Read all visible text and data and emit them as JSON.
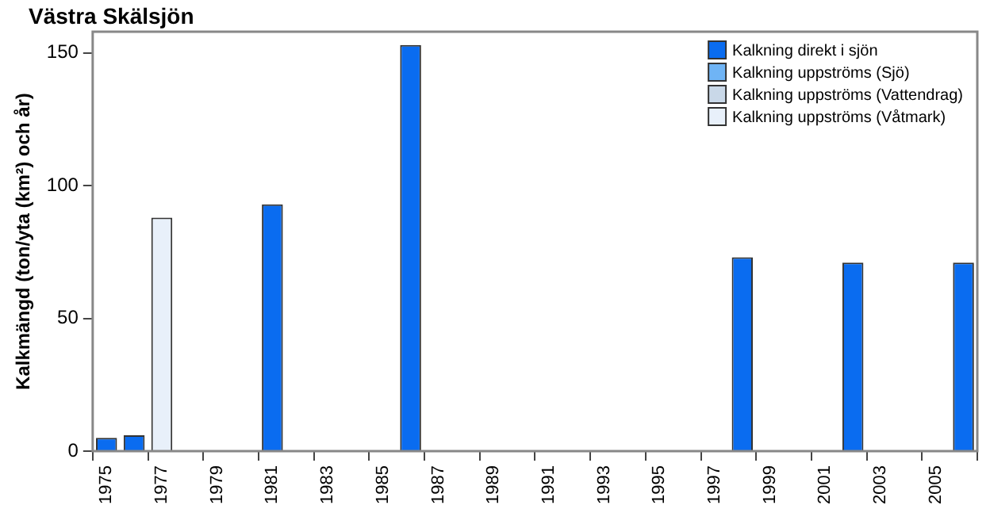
{
  "chart_data": {
    "type": "bar",
    "title": "Västra Skälsjön",
    "ylabel": "Kalkmängd (ton/yta (km²) och år)",
    "categories": [
      "1975",
      null,
      "1977",
      null,
      "1979",
      null,
      "1981",
      null,
      "1983",
      null,
      "1985",
      null,
      "1987",
      null,
      "1989",
      null,
      "1991",
      null,
      "1993",
      null,
      "1995",
      null,
      "1997",
      null,
      "1999",
      null,
      "2001",
      null,
      "2003",
      null,
      "2005",
      null
    ],
    "stacked": true,
    "series": [
      {
        "name": "Kalkning direkt i sjön",
        "color": "#0a6cf0",
        "values": [
          5,
          6,
          null,
          null,
          null,
          null,
          93,
          null,
          null,
          null,
          null,
          153,
          null,
          null,
          null,
          null,
          null,
          null,
          null,
          null,
          null,
          null,
          null,
          73,
          null,
          null,
          null,
          71,
          null,
          null,
          null,
          71
        ]
      },
      {
        "name": "Kalkning uppströms (Sjö)",
        "color": "#6fb4f5",
        "values": [
          null,
          null,
          null,
          null,
          null,
          null,
          null,
          null,
          null,
          null,
          null,
          null,
          null,
          null,
          null,
          null,
          null,
          null,
          null,
          null,
          null,
          null,
          null,
          null,
          null,
          null,
          null,
          null,
          null,
          null,
          null,
          null
        ]
      },
      {
        "name": "Kalkning uppströms (Vattendrag)",
        "color": "#c9d8e8",
        "values": [
          null,
          null,
          null,
          null,
          null,
          null,
          null,
          null,
          null,
          null,
          null,
          null,
          null,
          null,
          null,
          null,
          null,
          null,
          null,
          null,
          null,
          null,
          null,
          null,
          null,
          null,
          null,
          null,
          null,
          null,
          null,
          null
        ]
      },
      {
        "name": "Kalkning uppströms (Våtmark)",
        "color": "#e8f0fa",
        "values": [
          null,
          null,
          88,
          null,
          null,
          null,
          null,
          null,
          null,
          null,
          null,
          null,
          null,
          null,
          null,
          null,
          null,
          null,
          null,
          null,
          null,
          null,
          null,
          null,
          null,
          null,
          null,
          null,
          null,
          null,
          null,
          null
        ]
      }
    ],
    "ylim": [
      0,
      158
    ],
    "yticks": [
      0,
      50,
      100,
      150
    ],
    "grid": false,
    "legend": "top right"
  }
}
